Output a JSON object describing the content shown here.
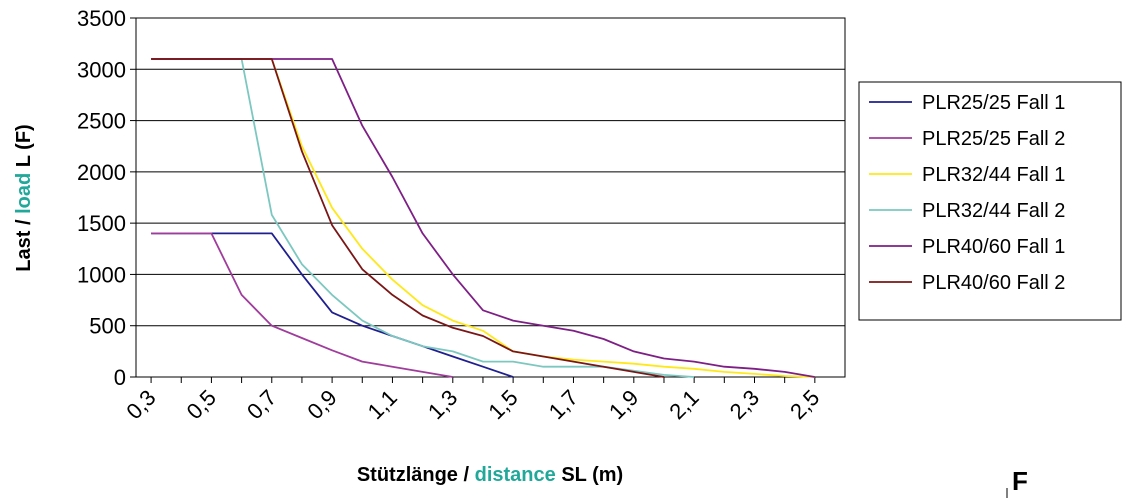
{
  "chart_data": {
    "type": "line",
    "title": "",
    "ylim": [
      0,
      3500
    ],
    "yticks": [
      0,
      500,
      1000,
      1500,
      2000,
      2500,
      3000,
      3500
    ],
    "xlim": [
      0.25,
      2.6
    ],
    "xticks": [
      "0,3",
      "0,5",
      "0,7",
      "0,9",
      "1,1",
      "1,3",
      "1,5",
      "1,7",
      "1,9",
      "2,1",
      "2,3",
      "2,5"
    ],
    "xtick_values": [
      0.3,
      0.5,
      0.7,
      0.9,
      1.1,
      1.3,
      1.5,
      1.7,
      1.9,
      2.1,
      2.3,
      2.5
    ],
    "ylabel_parts": [
      "Last / ",
      "load",
      " L (F)"
    ],
    "xlabel_parts": [
      "Stützlänge / ",
      "distance",
      " SL (m)"
    ],
    "grid": "horizontal",
    "legend_position": "right",
    "series": [
      {
        "name": "PLR25/25  Fall 1",
        "color": "#1f1f8f",
        "x": [
          0.3,
          0.4,
          0.5,
          0.6,
          0.7,
          0.8,
          0.9,
          1.0,
          1.1,
          1.2,
          1.3,
          1.4,
          1.5
        ],
        "y": [
          1400,
          1400,
          1400,
          1400,
          1400,
          1000,
          630,
          500,
          400,
          300,
          200,
          100,
          0
        ]
      },
      {
        "name": "PLR25/25  Fall 2",
        "color": "#a03c9c",
        "x": [
          0.3,
          0.4,
          0.5,
          0.6,
          0.7,
          0.8,
          0.9,
          1.0,
          1.1,
          1.2,
          1.3
        ],
        "y": [
          1400,
          1400,
          1400,
          800,
          500,
          380,
          260,
          150,
          100,
          50,
          0
        ]
      },
      {
        "name": "PLR32/44 Fall 1",
        "color": "#ffe81a",
        "x": [
          0.3,
          0.4,
          0.5,
          0.6,
          0.7,
          0.8,
          0.9,
          1.0,
          1.1,
          1.2,
          1.3,
          1.4,
          1.5,
          1.6,
          1.7,
          1.8,
          1.9,
          2.0,
          2.1,
          2.2,
          2.3,
          2.4,
          2.5
        ],
        "y": [
          3100,
          3100,
          3100,
          3100,
          3100,
          2250,
          1650,
          1250,
          950,
          700,
          550,
          450,
          250,
          200,
          170,
          150,
          130,
          100,
          80,
          50,
          30,
          10,
          0
        ]
      },
      {
        "name": "PLR32/44 Fall 2",
        "color": "#7cc8c0",
        "x": [
          0.3,
          0.4,
          0.5,
          0.6,
          0.7,
          0.8,
          0.9,
          1.0,
          1.1,
          1.2,
          1.3,
          1.4,
          1.5,
          1.6,
          1.7,
          1.8,
          1.9,
          2.0,
          2.1
        ],
        "y": [
          3100,
          3100,
          3100,
          3100,
          1580,
          1100,
          800,
          550,
          400,
          300,
          250,
          150,
          150,
          100,
          100,
          100,
          60,
          20,
          0
        ]
      },
      {
        "name": "PLR40/60 Fall 1",
        "color": "#7e1f86",
        "x": [
          0.3,
          0.4,
          0.5,
          0.6,
          0.7,
          0.8,
          0.9,
          1.0,
          1.1,
          1.2,
          1.3,
          1.4,
          1.5,
          1.6,
          1.7,
          1.8,
          1.9,
          2.0,
          2.1,
          2.2,
          2.3,
          2.4,
          2.5
        ],
        "y": [
          3100,
          3100,
          3100,
          3100,
          3100,
          3100,
          3100,
          2450,
          1950,
          1400,
          1000,
          650,
          550,
          500,
          450,
          370,
          250,
          180,
          150,
          100,
          80,
          50,
          0
        ]
      },
      {
        "name": "PLR40/60 Fall 2",
        "color": "#7a1616",
        "x": [
          0.3,
          0.4,
          0.5,
          0.6,
          0.7,
          0.8,
          0.9,
          1.0,
          1.1,
          1.2,
          1.3,
          1.4,
          1.5,
          1.6,
          1.7,
          1.8,
          1.9,
          2.0
        ],
        "y": [
          3100,
          3100,
          3100,
          3100,
          3100,
          2200,
          1480,
          1050,
          800,
          600,
          480,
          400,
          250,
          200,
          150,
          100,
          50,
          0
        ]
      }
    ]
  },
  "corner_label": "F"
}
